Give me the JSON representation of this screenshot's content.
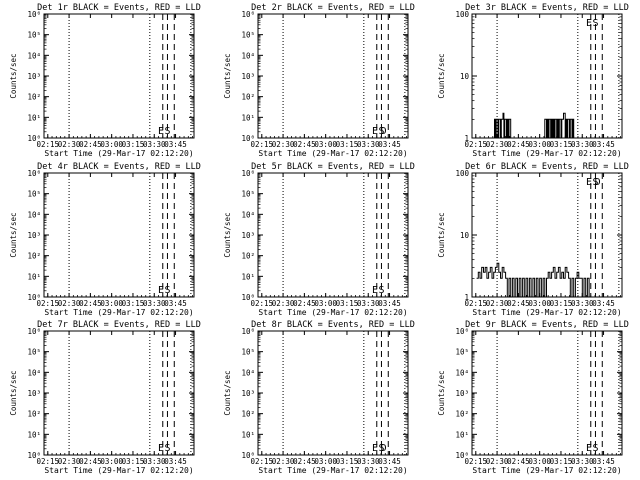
{
  "page": {
    "background": "#ffffff",
    "ink": "#000000"
  },
  "panel_common": {
    "xlabel": "Start Time (29-Mar-17 02:12:20)",
    "ylabel": "Counts/sec",
    "x_ticks": [
      "02:15",
      "02:30",
      "02:45",
      "03:00",
      "03:15",
      "03:30",
      "03:45"
    ],
    "x_tick_hours": [
      2.25,
      2.5,
      2.75,
      3.0,
      3.25,
      3.5,
      3.75
    ],
    "xlim_hours": [
      2.205556,
      3.966667
    ],
    "dotted_line_hours": [
      2.5,
      3.448,
      3.93
    ],
    "dashed_line_hours": [
      3.6,
      3.655,
      3.735
    ],
    "marker_labels": {
      "E": "E",
      "S": "S",
      "D": "D"
    }
  },
  "chart_data": [
    {
      "type": "line",
      "title": "Det 1r BLACK = Events, RED = LLD",
      "yscale": "log",
      "ylim": [
        1,
        1000000
      ],
      "y_ticks": [
        "10⁰",
        "10¹",
        "10²",
        "10³",
        "10⁴",
        "10⁵",
        "10⁶"
      ],
      "y_tick_values": [
        1,
        10,
        100,
        1000,
        10000,
        100000,
        1000000
      ],
      "marker_text": [
        "E",
        "S"
      ],
      "series": []
    },
    {
      "type": "line",
      "title": "Det 2r BLACK = Events, RED = LLD",
      "yscale": "log",
      "ylim": [
        1,
        1000000
      ],
      "y_ticks": [
        "10⁰",
        "10¹",
        "10²",
        "10³",
        "10⁴",
        "10⁵",
        "10⁶"
      ],
      "y_tick_values": [
        1,
        10,
        100,
        1000,
        10000,
        100000,
        1000000
      ],
      "marker_text": [
        "E",
        "S",
        "D"
      ],
      "series": []
    },
    {
      "type": "line",
      "title": "Det 3r BLACK = Events, RED = LLD",
      "yscale": "log",
      "ylim": [
        1,
        100
      ],
      "y_ticks": [
        "1",
        "10",
        "100"
      ],
      "y_tick_values": [
        1,
        10,
        100
      ],
      "marker_text": [
        "E",
        "S"
      ],
      "series": [
        {
          "color": "#000000",
          "x": [
            2.45,
            2.47,
            2.48,
            2.49,
            2.5,
            2.51,
            2.52,
            2.53,
            2.54,
            2.55,
            2.56,
            2.57,
            2.58,
            2.59,
            2.6,
            2.61,
            2.62,
            2.63,
            2.64,
            2.65,
            2.66,
            2.67,
            3.05,
            3.06,
            3.07,
            3.08,
            3.09,
            3.1,
            3.11,
            3.12,
            3.13,
            3.14,
            3.15,
            3.16,
            3.17,
            3.18,
            3.19,
            3.2,
            3.21,
            3.22,
            3.23,
            3.24,
            3.25,
            3.26,
            3.27,
            3.28,
            3.3,
            3.31,
            3.32,
            3.33,
            3.34,
            3.35,
            3.36,
            3.37,
            3.38,
            3.39,
            3.4
          ],
          "y": [
            1,
            2,
            1,
            2,
            2,
            1,
            2,
            2,
            1,
            2,
            2,
            2.5,
            1,
            2,
            2,
            1,
            2,
            1,
            2,
            2,
            1,
            1,
            1,
            2,
            2,
            1,
            2,
            1,
            2,
            2,
            1,
            2,
            1,
            2,
            1,
            2,
            2,
            1,
            2,
            1,
            2,
            2,
            1,
            2,
            2,
            2.5,
            1,
            2,
            1,
            2,
            2,
            1,
            2,
            2,
            1,
            2,
            1
          ]
        }
      ]
    },
    {
      "type": "line",
      "title": "Det 4r BLACK = Events, RED = LLD",
      "yscale": "log",
      "ylim": [
        1,
        1000000
      ],
      "y_ticks": [
        "10⁰",
        "10¹",
        "10²",
        "10³",
        "10⁴",
        "10⁵",
        "10⁶"
      ],
      "y_tick_values": [
        1,
        10,
        100,
        1000,
        10000,
        100000,
        1000000
      ],
      "marker_text": [
        "E",
        "S"
      ],
      "series": []
    },
    {
      "type": "line",
      "title": "Det 5r BLACK = Events, RED = LLD",
      "yscale": "log",
      "ylim": [
        1,
        1000000
      ],
      "y_ticks": [
        "10⁰",
        "10¹",
        "10²",
        "10³",
        "10⁴",
        "10⁵",
        "10⁶"
      ],
      "y_tick_values": [
        1,
        10,
        100,
        1000,
        10000,
        100000,
        1000000
      ],
      "marker_text": [
        "E",
        "S"
      ],
      "series": []
    },
    {
      "type": "line",
      "title": "Det 6r BLACK = Events, RED = LLD",
      "yscale": "log",
      "ylim": [
        1,
        100
      ],
      "y_ticks": [
        "1",
        "10",
        "100"
      ],
      "y_tick_values": [
        1,
        10,
        100
      ],
      "marker_text": [
        "E",
        "S",
        "D"
      ],
      "series": [
        {
          "color": "#000000",
          "x": [
            2.26,
            2.28,
            2.3,
            2.32,
            2.34,
            2.36,
            2.38,
            2.4,
            2.42,
            2.44,
            2.46,
            2.48,
            2.5,
            2.52,
            2.54,
            2.56,
            2.58,
            2.6,
            2.62,
            2.64,
            2.66,
            2.68,
            2.7,
            2.72,
            2.74,
            2.76,
            2.78,
            2.8,
            2.82,
            2.84,
            2.86,
            2.88,
            2.9,
            2.92,
            2.94,
            2.96,
            2.98,
            3.0,
            3.02,
            3.04,
            3.06,
            3.08,
            3.1,
            3.12,
            3.14,
            3.16,
            3.18,
            3.2,
            3.22,
            3.24,
            3.26,
            3.28,
            3.3,
            3.32,
            3.34,
            3.36,
            3.38,
            3.4,
            3.42,
            3.44,
            3.46,
            3.48,
            3.5,
            3.52,
            3.54,
            3.56,
            3.58
          ],
          "y": [
            2,
            2.5,
            2,
            3,
            2.5,
            3,
            2,
            2.5,
            3,
            2,
            2.5,
            3,
            3.5,
            2.5,
            2,
            3,
            2.5,
            2,
            1,
            2,
            1,
            2,
            1,
            2,
            1,
            2,
            1,
            2,
            1,
            2,
            1,
            2,
            1,
            2,
            1,
            2,
            1,
            2,
            1,
            2,
            1,
            2,
            2.5,
            2,
            2.5,
            3,
            2,
            2.5,
            3,
            2,
            2.5,
            2,
            3,
            2.5,
            2,
            1,
            2,
            1,
            2,
            2.5,
            2,
            2,
            1,
            2,
            1,
            2,
            1
          ]
        }
      ]
    },
    {
      "type": "line",
      "title": "Det 7r BLACK = Events, RED = LLD",
      "yscale": "log",
      "ylim": [
        1,
        1000000
      ],
      "y_ticks": [
        "10⁰",
        "10¹",
        "10²",
        "10³",
        "10⁴",
        "10⁵",
        "10⁶"
      ],
      "y_tick_values": [
        1,
        10,
        100,
        1000,
        10000,
        100000,
        1000000
      ],
      "marker_text": [
        "E",
        "S"
      ],
      "series": []
    },
    {
      "type": "line",
      "title": "Det 8r BLACK = Events, RED = LLD",
      "yscale": "log",
      "ylim": [
        1,
        1000000
      ],
      "y_ticks": [
        "10⁰",
        "10¹",
        "10²",
        "10³",
        "10⁴",
        "10⁵",
        "10⁶"
      ],
      "y_tick_values": [
        1,
        10,
        100,
        1000,
        10000,
        100000,
        1000000
      ],
      "marker_text": [
        "E",
        "S",
        "D"
      ],
      "series": []
    },
    {
      "type": "line",
      "title": "Det 9r BLACK = Events, RED = LLD",
      "yscale": "log",
      "ylim": [
        1,
        1000000
      ],
      "y_ticks": [
        "10⁰",
        "10¹",
        "10²",
        "10³",
        "10⁴",
        "10⁵",
        "10⁶"
      ],
      "y_tick_values": [
        1,
        10,
        100,
        1000,
        10000,
        100000,
        1000000
      ],
      "marker_text": [
        "E",
        "S"
      ],
      "series": []
    }
  ]
}
